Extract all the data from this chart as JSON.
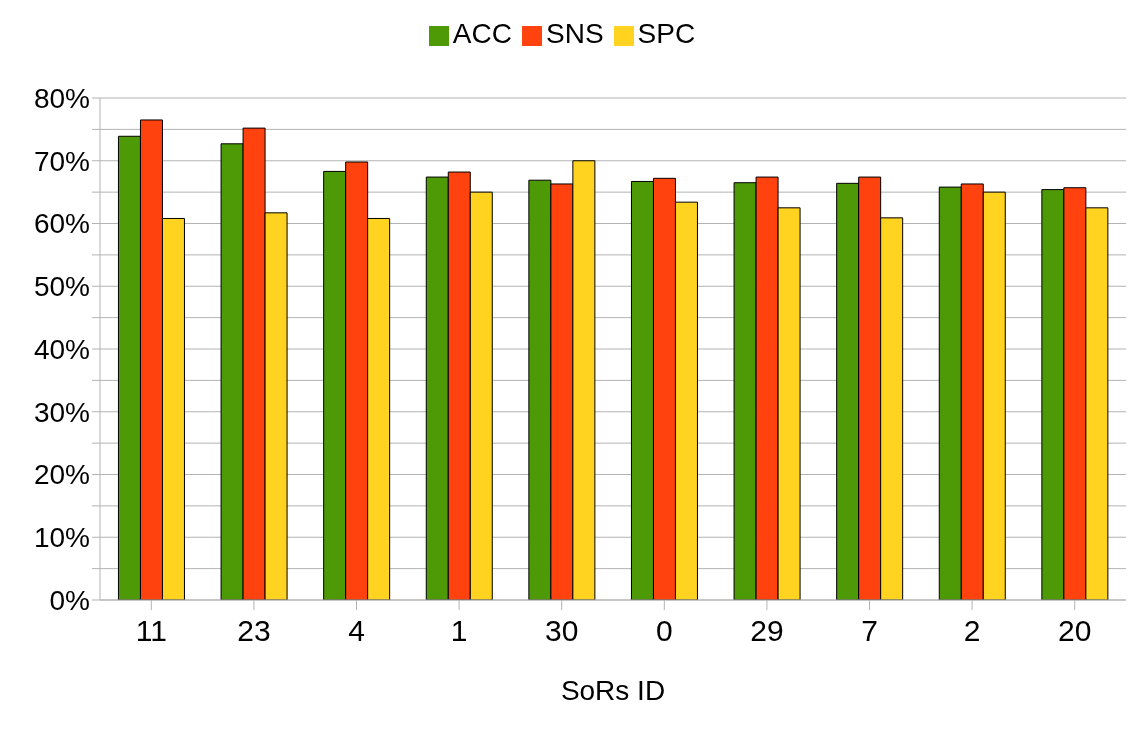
{
  "chart_data": {
    "type": "bar",
    "xlabel": "SoRs ID",
    "categories": [
      "11",
      "23",
      "4",
      "1",
      "30",
      "0",
      "29",
      "7",
      "2",
      "20"
    ],
    "series": [
      {
        "name": "ACC",
        "color": "#4e9a06",
        "values": [
          73.9,
          72.7,
          68.3,
          67.4,
          66.9,
          66.7,
          66.5,
          66.4,
          65.8,
          65.4
        ]
      },
      {
        "name": "SNS",
        "color": "#ff420e",
        "values": [
          76.5,
          75.2,
          69.8,
          68.2,
          66.3,
          67.2,
          67.4,
          67.4,
          66.3,
          65.7
        ]
      },
      {
        "name": "SPC",
        "color": "#ffd320",
        "values": [
          60.8,
          61.7,
          60.8,
          65.0,
          70.0,
          63.4,
          62.5,
          60.9,
          65.0,
          62.5
        ]
      }
    ],
    "ylim": [
      0,
      80
    ],
    "yticks": [
      {
        "value": 0,
        "label": "0%"
      },
      {
        "value": 5,
        "label": null
      },
      {
        "value": 10,
        "label": "10%"
      },
      {
        "value": 15,
        "label": null
      },
      {
        "value": 20,
        "label": "20%"
      },
      {
        "value": 25,
        "label": null
      },
      {
        "value": 30,
        "label": "30%"
      },
      {
        "value": 35,
        "label": null
      },
      {
        "value": 40,
        "label": "40%"
      },
      {
        "value": 45,
        "label": null
      },
      {
        "value": 50,
        "label": "50%"
      },
      {
        "value": 55,
        "label": null
      },
      {
        "value": 60,
        "label": "60%"
      },
      {
        "value": 65,
        "label": null
      },
      {
        "value": 70,
        "label": "70%"
      },
      {
        "value": 75,
        "label": null
      },
      {
        "value": 80,
        "label": "80%"
      }
    ],
    "grid": "y",
    "legend": "top"
  }
}
